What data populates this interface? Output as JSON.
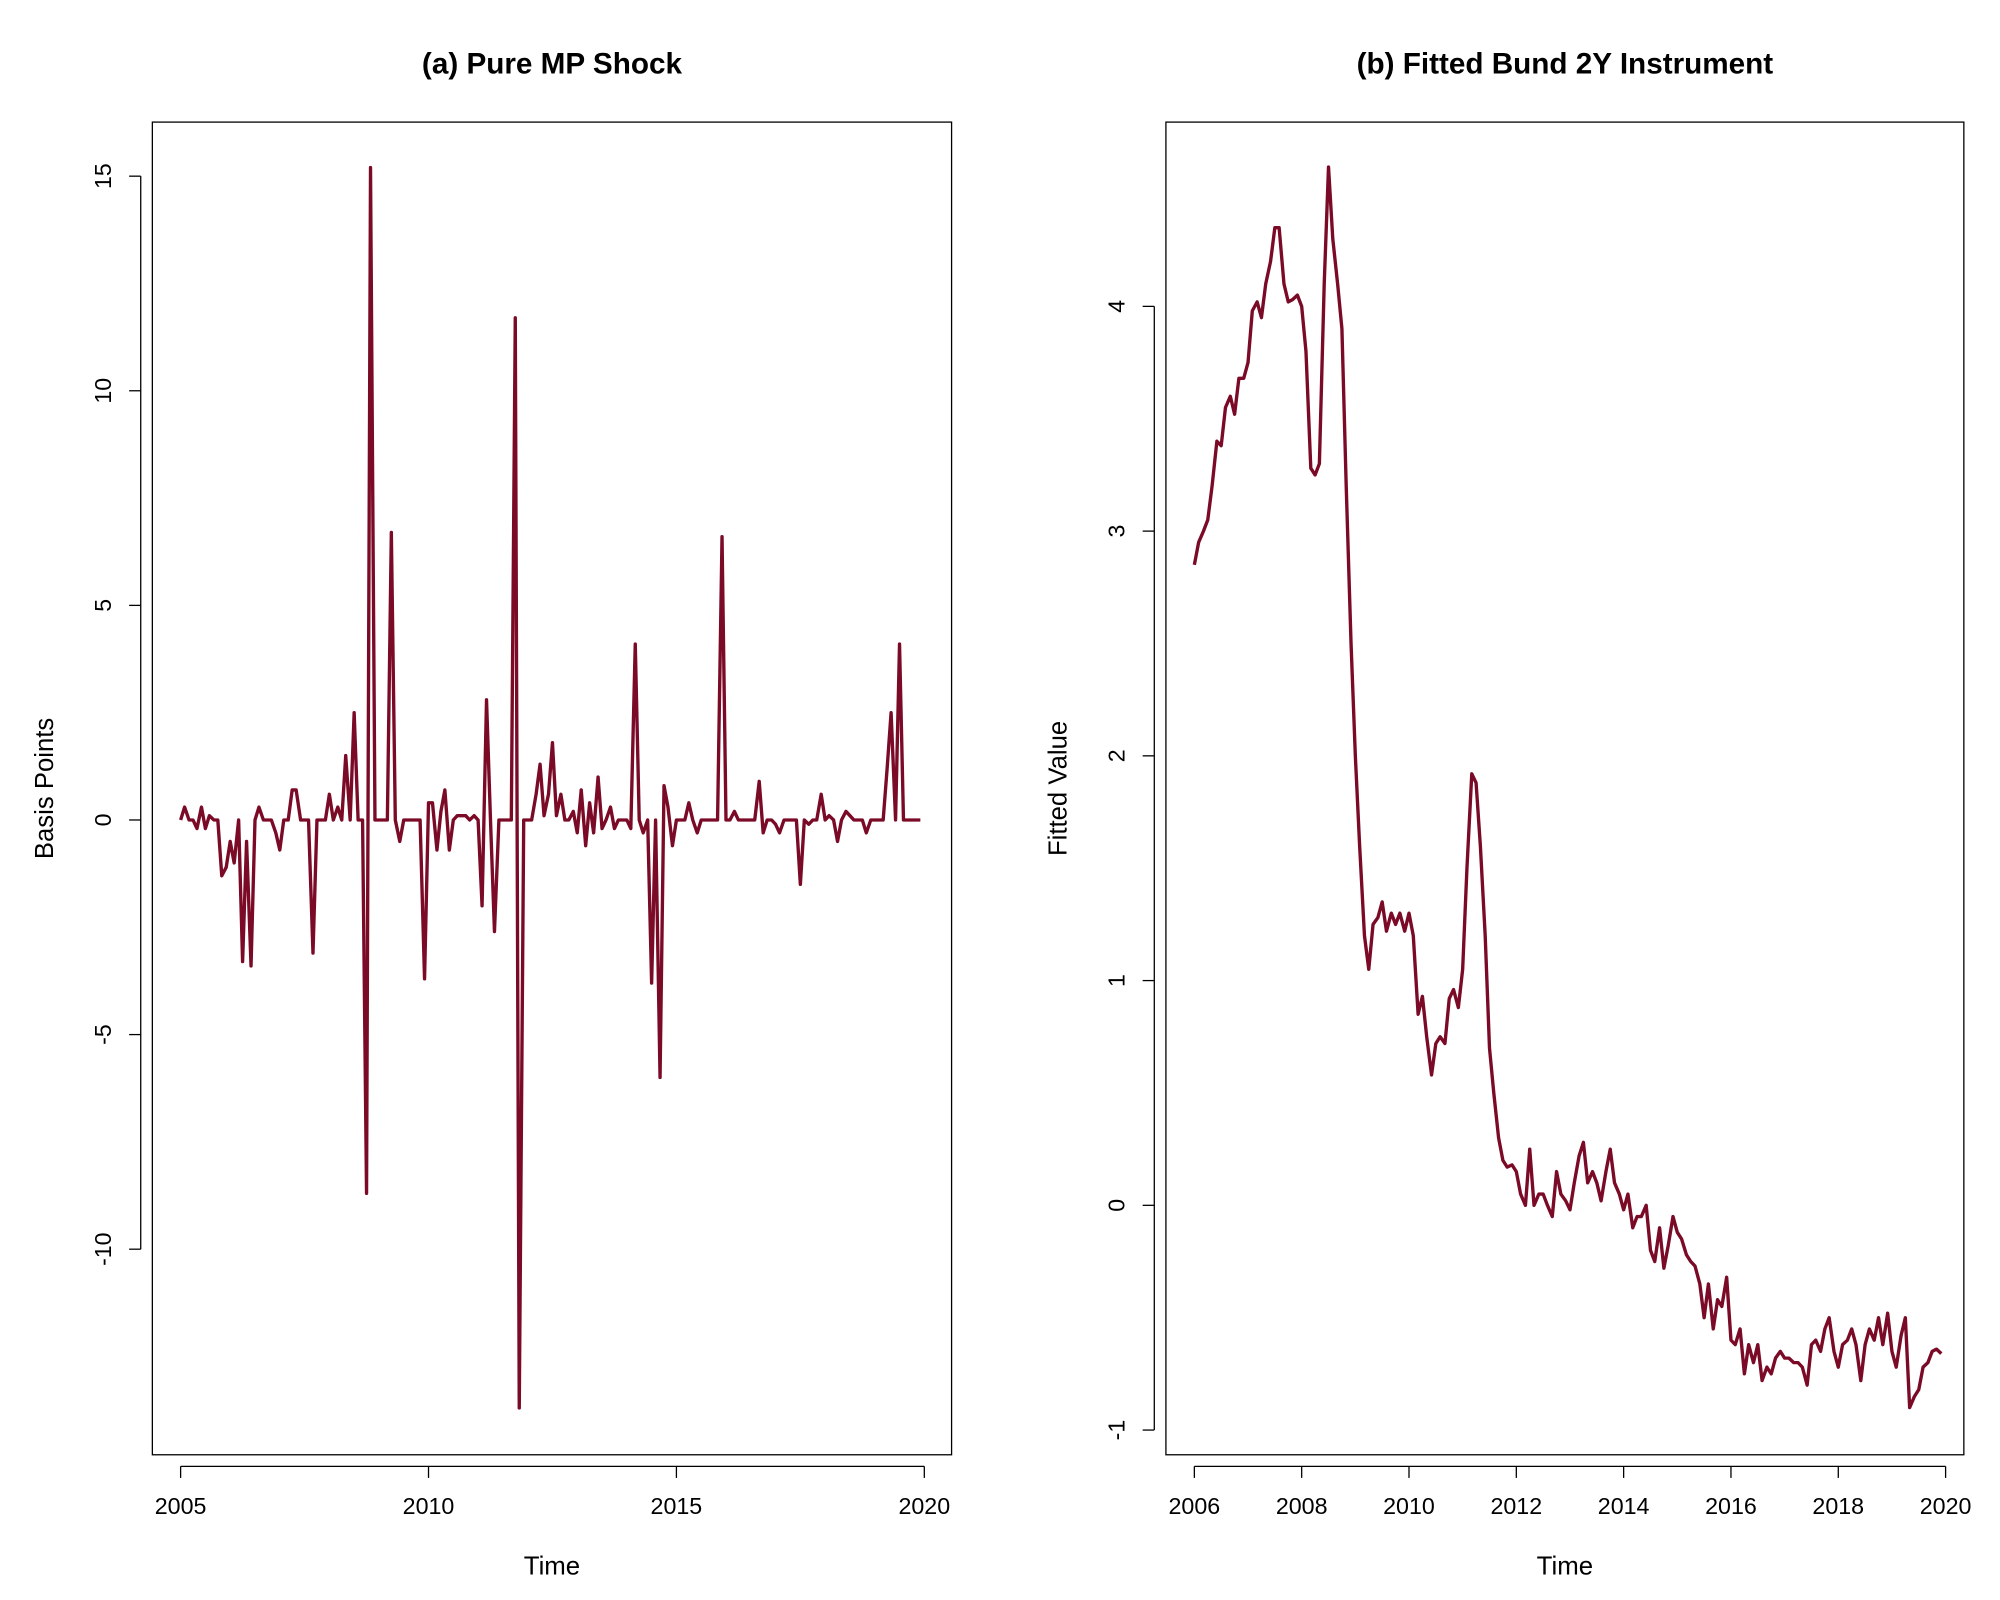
{
  "chart_data": [
    {
      "type": "line",
      "title": "(a) Pure MP Shock",
      "x_label": "Time",
      "y_label": "Basis Points",
      "xlim": [
        2004.43,
        2020.55
      ],
      "ylim": [
        -14.79,
        16.26
      ],
      "xticks": [
        2005,
        2010,
        2015,
        2020
      ],
      "yticks": [
        -10,
        -5,
        0,
        5,
        10,
        15
      ],
      "x": [
        2005.0,
        2005.08,
        2005.17,
        2005.25,
        2005.33,
        2005.42,
        2005.5,
        2005.58,
        2005.67,
        2005.75,
        2005.83,
        2005.92,
        2006.0,
        2006.08,
        2006.17,
        2006.25,
        2006.33,
        2006.42,
        2006.5,
        2006.58,
        2006.67,
        2006.75,
        2006.83,
        2006.92,
        2007.0,
        2007.08,
        2007.17,
        2007.25,
        2007.33,
        2007.42,
        2007.5,
        2007.58,
        2007.67,
        2007.75,
        2007.83,
        2007.92,
        2008.0,
        2008.08,
        2008.17,
        2008.25,
        2008.33,
        2008.42,
        2008.5,
        2008.58,
        2008.67,
        2008.75,
        2008.83,
        2008.92,
        2009.0,
        2009.08,
        2009.17,
        2009.25,
        2009.33,
        2009.42,
        2009.5,
        2009.58,
        2009.67,
        2009.75,
        2009.83,
        2009.92,
        2010.0,
        2010.08,
        2010.17,
        2010.25,
        2010.33,
        2010.42,
        2010.5,
        2010.58,
        2010.67,
        2010.75,
        2010.83,
        2010.92,
        2011.0,
        2011.08,
        2011.17,
        2011.25,
        2011.33,
        2011.42,
        2011.5,
        2011.58,
        2011.67,
        2011.75,
        2011.83,
        2011.92,
        2012.0,
        2012.08,
        2012.17,
        2012.25,
        2012.33,
        2012.42,
        2012.5,
        2012.58,
        2012.67,
        2012.75,
        2012.83,
        2012.92,
        2013.0,
        2013.08,
        2013.17,
        2013.25,
        2013.33,
        2013.42,
        2013.5,
        2013.58,
        2013.67,
        2013.75,
        2013.83,
        2013.92,
        2014.0,
        2014.08,
        2014.17,
        2014.25,
        2014.33,
        2014.42,
        2014.5,
        2014.58,
        2014.67,
        2014.75,
        2014.83,
        2014.92,
        2015.0,
        2015.08,
        2015.17,
        2015.25,
        2015.33,
        2015.42,
        2015.5,
        2015.58,
        2015.67,
        2015.75,
        2015.83,
        2015.92,
        2016.0,
        2016.08,
        2016.17,
        2016.25,
        2016.33,
        2016.42,
        2016.5,
        2016.58,
        2016.67,
        2016.75,
        2016.83,
        2016.92,
        2017.0,
        2017.08,
        2017.17,
        2017.25,
        2017.33,
        2017.42,
        2017.5,
        2017.58,
        2017.67,
        2017.75,
        2017.83,
        2017.92,
        2018.0,
        2018.08,
        2018.17,
        2018.25,
        2018.33,
        2018.42,
        2018.5,
        2018.58,
        2018.67,
        2018.75,
        2018.83,
        2018.92,
        2019.0,
        2019.08,
        2019.17,
        2019.25,
        2019.33,
        2019.42,
        2019.5,
        2019.58,
        2019.67,
        2019.75,
        2019.83,
        2019.92
      ],
      "series": [
        {
          "color": "#7a0a26",
          "values": [
            0,
            0.3,
            0,
            0,
            -0.2,
            0.3,
            -0.2,
            0.1,
            0,
            0,
            -1.3,
            -1.1,
            -0.5,
            -1.0,
            0,
            -3.3,
            -0.5,
            -3.4,
            0,
            0.3,
            0,
            0,
            0,
            -0.3,
            -0.7,
            0,
            0,
            0.7,
            0.7,
            0,
            0,
            0,
            -3.1,
            0,
            0,
            0,
            0.6,
            0,
            0.3,
            0,
            1.5,
            0,
            2.5,
            0,
            0,
            -8.7,
            15.2,
            0,
            0,
            0,
            0,
            6.7,
            0,
            -0.5,
            0,
            0,
            0,
            0,
            0,
            -3.7,
            0.4,
            0.4,
            -0.7,
            0.2,
            0.7,
            -0.7,
            0,
            0.1,
            0.1,
            0.1,
            0,
            0.1,
            0,
            -2.0,
            2.8,
            0,
            -2.6,
            0,
            0,
            0,
            0,
            11.7,
            -13.7,
            0,
            0,
            0,
            0.6,
            1.3,
            0.1,
            0.6,
            1.8,
            0.1,
            0.6,
            0,
            0,
            0.2,
            -0.3,
            0.7,
            -0.6,
            0.4,
            -0.3,
            1.0,
            -0.2,
            0,
            0.3,
            -0.2,
            0,
            0,
            0,
            -0.2,
            4.1,
            0,
            -0.3,
            0,
            -3.8,
            0,
            -6.0,
            0.8,
            0.3,
            -0.6,
            0,
            0,
            0,
            0.4,
            0,
            -0.3,
            0,
            0,
            0,
            0,
            0,
            6.6,
            0,
            0,
            0.2,
            0,
            0,
            0,
            0,
            0,
            0.9,
            -0.3,
            0,
            0,
            -0.1,
            -0.3,
            0,
            0,
            0,
            0,
            -1.5,
            0,
            -0.1,
            0,
            0,
            0.6,
            0,
            0.1,
            0,
            -0.5,
            0,
            0.2,
            0.1,
            0,
            0,
            0,
            -0.3,
            0,
            0,
            0,
            0,
            1.2,
            2.5,
            0,
            4.1,
            0,
            0,
            0,
            0,
            0
          ]
        }
      ]
    },
    {
      "type": "line",
      "title": "(b) Fitted Bund 2Y Instrument",
      "x_label": "Time",
      "y_label": "Fitted Value",
      "xlim": [
        2005.47,
        2020.34
      ],
      "ylim": [
        -1.11,
        4.82
      ],
      "xticks": [
        2006,
        2008,
        2010,
        2012,
        2014,
        2016,
        2018,
        2020
      ],
      "yticks": [
        -1,
        0,
        1,
        2,
        3,
        4
      ],
      "x": [
        2006.0,
        2006.08,
        2006.17,
        2006.25,
        2006.33,
        2006.42,
        2006.5,
        2006.58,
        2006.67,
        2006.75,
        2006.83,
        2006.92,
        2007.0,
        2007.08,
        2007.17,
        2007.25,
        2007.33,
        2007.42,
        2007.5,
        2007.58,
        2007.67,
        2007.75,
        2007.83,
        2007.92,
        2008.0,
        2008.08,
        2008.17,
        2008.25,
        2008.33,
        2008.42,
        2008.5,
        2008.58,
        2008.67,
        2008.75,
        2008.83,
        2008.92,
        2009.0,
        2009.08,
        2009.17,
        2009.25,
        2009.33,
        2009.42,
        2009.5,
        2009.58,
        2009.67,
        2009.75,
        2009.83,
        2009.92,
        2010.0,
        2010.08,
        2010.17,
        2010.25,
        2010.33,
        2010.42,
        2010.5,
        2010.58,
        2010.67,
        2010.75,
        2010.83,
        2010.92,
        2011.0,
        2011.08,
        2011.17,
        2011.25,
        2011.33,
        2011.42,
        2011.5,
        2011.58,
        2011.67,
        2011.75,
        2011.83,
        2011.92,
        2012.0,
        2012.08,
        2012.17,
        2012.25,
        2012.33,
        2012.42,
        2012.5,
        2012.58,
        2012.67,
        2012.75,
        2012.83,
        2012.92,
        2013.0,
        2013.08,
        2013.17,
        2013.25,
        2013.33,
        2013.42,
        2013.5,
        2013.58,
        2013.67,
        2013.75,
        2013.83,
        2013.92,
        2014.0,
        2014.08,
        2014.17,
        2014.25,
        2014.33,
        2014.42,
        2014.5,
        2014.58,
        2014.67,
        2014.75,
        2014.83,
        2014.92,
        2015.0,
        2015.08,
        2015.17,
        2015.25,
        2015.33,
        2015.42,
        2015.5,
        2015.58,
        2015.67,
        2015.75,
        2015.83,
        2015.92,
        2016.0,
        2016.08,
        2016.17,
        2016.25,
        2016.33,
        2016.42,
        2016.5,
        2016.58,
        2016.67,
        2016.75,
        2016.83,
        2016.92,
        2017.0,
        2017.08,
        2017.17,
        2017.25,
        2017.33,
        2017.42,
        2017.5,
        2017.58,
        2017.67,
        2017.75,
        2017.83,
        2017.92,
        2018.0,
        2018.08,
        2018.17,
        2018.25,
        2018.33,
        2018.42,
        2018.5,
        2018.58,
        2018.67,
        2018.75,
        2018.83,
        2018.92,
        2019.0,
        2019.08,
        2019.17,
        2019.25,
        2019.33,
        2019.42,
        2019.5,
        2019.58,
        2019.67,
        2019.75,
        2019.83,
        2019.92
      ],
      "series": [
        {
          "color": "#7a0a26",
          "values": [
            2.85,
            2.95,
            3.0,
            3.05,
            3.2,
            3.4,
            3.38,
            3.55,
            3.6,
            3.52,
            3.68,
            3.68,
            3.75,
            3.98,
            4.02,
            3.95,
            4.1,
            4.2,
            4.35,
            4.35,
            4.1,
            4.02,
            4.03,
            4.05,
            4.0,
            3.8,
            3.28,
            3.25,
            3.3,
            4.1,
            4.62,
            4.3,
            4.1,
            3.9,
            3.2,
            2.5,
            2.0,
            1.6,
            1.2,
            1.05,
            1.25,
            1.28,
            1.35,
            1.22,
            1.3,
            1.25,
            1.3,
            1.22,
            1.3,
            1.2,
            0.85,
            0.93,
            0.75,
            0.58,
            0.72,
            0.75,
            0.72,
            0.92,
            0.96,
            0.88,
            1.05,
            1.5,
            1.92,
            1.88,
            1.6,
            1.2,
            0.7,
            0.5,
            0.3,
            0.2,
            0.17,
            0.18,
            0.15,
            0.05,
            0,
            0.25,
            0,
            0.05,
            0.05,
            0,
            -0.05,
            0.15,
            0.05,
            0.02,
            -0.02,
            0.1,
            0.22,
            0.28,
            0.1,
            0.15,
            0.1,
            0.02,
            0.15,
            0.25,
            0.1,
            0.05,
            -0.02,
            0.05,
            -0.1,
            -0.05,
            -0.05,
            0,
            -0.2,
            -0.25,
            -0.1,
            -0.28,
            -0.18,
            -0.05,
            -0.12,
            -0.15,
            -0.22,
            -0.25,
            -0.27,
            -0.35,
            -0.5,
            -0.35,
            -0.55,
            -0.42,
            -0.45,
            -0.32,
            -0.6,
            -0.62,
            -0.55,
            -0.75,
            -0.62,
            -0.7,
            -0.62,
            -0.78,
            -0.72,
            -0.75,
            -0.68,
            -0.65,
            -0.68,
            -0.68,
            -0.7,
            -0.7,
            -0.72,
            -0.8,
            -0.62,
            -0.6,
            -0.65,
            -0.55,
            -0.5,
            -0.65,
            -0.72,
            -0.62,
            -0.6,
            -0.55,
            -0.62,
            -0.78,
            -0.62,
            -0.55,
            -0.6,
            -0.5,
            -0.62,
            -0.48,
            -0.65,
            -0.72,
            -0.58,
            -0.5,
            -0.9,
            -0.85,
            -0.82,
            -0.72,
            -0.7,
            -0.65,
            -0.64,
            -0.66
          ]
        }
      ]
    }
  ]
}
